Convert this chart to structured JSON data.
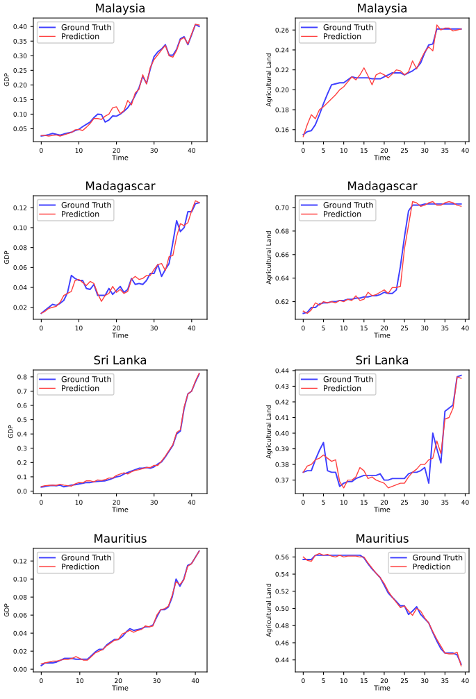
{
  "chart_data": [
    {
      "type": "line",
      "title": "Malaysia",
      "xlabel": "Time",
      "ylabel": "GDP",
      "legend": "top left",
      "grid": false,
      "x": [
        0,
        1,
        2,
        3,
        4,
        5,
        6,
        7,
        8,
        9,
        10,
        11,
        12,
        13,
        14,
        15,
        16,
        17,
        18,
        19,
        20,
        21,
        22,
        23,
        24,
        25,
        26,
        27,
        28,
        29,
        30,
        31,
        32,
        33,
        34,
        35,
        36,
        37,
        38,
        39,
        40,
        41,
        42
      ],
      "xlim": [
        -2.1,
        44.1
      ],
      "xticks": [
        0,
        10,
        20,
        30,
        40
      ],
      "ylim": [
        0.006,
        0.429
      ],
      "yticks": [
        {
          "value": 0.05,
          "label": "0.05"
        },
        {
          "value": 0.1,
          "label": "0.10"
        },
        {
          "value": 0.15,
          "label": "0.15"
        },
        {
          "value": 0.2,
          "label": "0.20"
        },
        {
          "value": 0.25,
          "label": "0.25"
        },
        {
          "value": 0.3,
          "label": "0.30"
        },
        {
          "value": 0.35,
          "label": "0.35"
        },
        {
          "value": 0.4,
          "label": "0.40"
        }
      ],
      "series": [
        {
          "name": "Ground Truth",
          "color": "#3f3fff",
          "values": [
            0.025,
            0.027,
            0.03,
            0.034,
            0.031,
            0.028,
            0.032,
            0.035,
            0.038,
            0.044,
            0.048,
            0.057,
            0.065,
            0.073,
            0.088,
            0.1,
            0.099,
            0.073,
            0.08,
            0.094,
            0.093,
            0.1,
            0.11,
            0.122,
            0.14,
            0.165,
            0.19,
            0.23,
            0.205,
            0.255,
            0.297,
            0.313,
            0.323,
            0.338,
            0.302,
            0.302,
            0.322,
            0.358,
            0.365,
            0.338,
            0.372,
            0.407,
            0.4
          ]
        },
        {
          "name": "Prediction",
          "color": "#ff3f3f",
          "values": [
            0.027,
            0.027,
            0.025,
            0.027,
            0.029,
            0.025,
            0.029,
            0.033,
            0.037,
            0.046,
            0.048,
            0.044,
            0.055,
            0.068,
            0.085,
            0.085,
            0.082,
            0.093,
            0.1,
            0.122,
            0.125,
            0.102,
            0.112,
            0.147,
            0.132,
            0.173,
            0.185,
            0.235,
            0.203,
            0.26,
            0.287,
            0.303,
            0.32,
            0.335,
            0.3,
            0.295,
            0.318,
            0.355,
            0.362,
            0.34,
            0.375,
            0.408,
            0.405
          ]
        }
      ]
    },
    {
      "type": "line",
      "title": "Malaysia",
      "xlabel": "Time",
      "ylabel": "Agricultural Land",
      "legend": "top left",
      "grid": false,
      "x": [
        0,
        1,
        2,
        3,
        4,
        5,
        6,
        7,
        8,
        9,
        10,
        11,
        12,
        13,
        14,
        15,
        16,
        17,
        18,
        19,
        20,
        21,
        22,
        23,
        24,
        25,
        26,
        27,
        28,
        29,
        30,
        31,
        32,
        33,
        34,
        35,
        36,
        37,
        38,
        39
      ],
      "xlim": [
        -1.95,
        40.95
      ],
      "xticks": [
        0,
        5,
        10,
        15,
        20,
        25,
        30,
        35,
        40
      ],
      "ylim": [
        0.148,
        0.272
      ],
      "yticks": [
        {
          "value": 0.16,
          "label": "0.16"
        },
        {
          "value": 0.18,
          "label": "0.18"
        },
        {
          "value": 0.2,
          "label": "0.20"
        },
        {
          "value": 0.22,
          "label": "0.22"
        },
        {
          "value": 0.24,
          "label": "0.24"
        },
        {
          "value": 0.26,
          "label": "0.26"
        }
      ],
      "series": [
        {
          "name": "Ground Truth",
          "color": "#3f3fff",
          "values": [
            0.155,
            0.158,
            0.159,
            0.165,
            0.175,
            0.186,
            0.196,
            0.205,
            0.206,
            0.207,
            0.207,
            0.21,
            0.213,
            0.212,
            0.212,
            0.212,
            0.212,
            0.211,
            0.211,
            0.211,
            0.213,
            0.215,
            0.217,
            0.217,
            0.217,
            0.215,
            0.217,
            0.219,
            0.222,
            0.227,
            0.237,
            0.245,
            0.246,
            0.261,
            0.261,
            0.261,
            0.261,
            0.261,
            0.261,
            0.261
          ]
        },
        {
          "name": "Prediction",
          "color": "#ff3f3f",
          "values": [
            0.153,
            0.165,
            0.175,
            0.171,
            0.18,
            0.183,
            0.187,
            0.191,
            0.195,
            0.2,
            0.203,
            0.208,
            0.213,
            0.21,
            0.215,
            0.222,
            0.214,
            0.205,
            0.215,
            0.217,
            0.215,
            0.212,
            0.216,
            0.22,
            0.219,
            0.215,
            0.218,
            0.229,
            0.221,
            0.23,
            0.238,
            0.243,
            0.239,
            0.265,
            0.26,
            0.262,
            0.262,
            0.259,
            0.26,
            0.261
          ]
        }
      ]
    },
    {
      "type": "line",
      "title": "Madagascar",
      "xlabel": "Time",
      "ylabel": "GDP",
      "legend": "top left",
      "grid": false,
      "x": [
        0,
        1,
        2,
        3,
        4,
        5,
        6,
        7,
        8,
        9,
        10,
        11,
        12,
        13,
        14,
        15,
        16,
        17,
        18,
        19,
        20,
        21,
        22,
        23,
        24,
        25,
        26,
        27,
        28,
        29,
        30,
        31,
        32,
        33,
        34,
        35,
        36,
        37,
        38,
        39,
        40,
        41,
        42
      ],
      "xlim": [
        -2.1,
        44.1
      ],
      "xticks": [
        0,
        10,
        20,
        30,
        40
      ],
      "ylim": [
        0.008,
        0.132
      ],
      "yticks": [
        {
          "value": 0.02,
          "label": "0.02"
        },
        {
          "value": 0.04,
          "label": "0.04"
        },
        {
          "value": 0.06,
          "label": "0.06"
        },
        {
          "value": 0.08,
          "label": "0.08"
        },
        {
          "value": 0.1,
          "label": "0.10"
        },
        {
          "value": 0.12,
          "label": "0.12"
        }
      ],
      "series": [
        {
          "name": "Ground Truth",
          "color": "#3f3fff",
          "values": [
            0.014,
            0.017,
            0.02,
            0.023,
            0.022,
            0.024,
            0.027,
            0.035,
            0.052,
            0.049,
            0.047,
            0.047,
            0.039,
            0.038,
            0.043,
            0.032,
            0.032,
            0.032,
            0.039,
            0.033,
            0.037,
            0.041,
            0.035,
            0.038,
            0.049,
            0.043,
            0.044,
            0.043,
            0.047,
            0.054,
            0.054,
            0.063,
            0.051,
            0.058,
            0.064,
            0.085,
            0.107,
            0.096,
            0.1,
            0.116,
            0.116,
            0.124,
            0.125
          ]
        },
        {
          "name": "Prediction",
          "color": "#ff3f3f",
          "values": [
            0.014,
            0.016,
            0.019,
            0.02,
            0.021,
            0.025,
            0.032,
            0.034,
            0.036,
            0.047,
            0.048,
            0.045,
            0.042,
            0.046,
            0.044,
            0.034,
            0.026,
            0.032,
            0.034,
            0.041,
            0.035,
            0.038,
            0.034,
            0.036,
            0.048,
            0.051,
            0.048,
            0.049,
            0.052,
            0.052,
            0.058,
            0.063,
            0.064,
            0.057,
            0.071,
            0.072,
            0.091,
            0.104,
            0.102,
            0.105,
            0.117,
            0.127,
            0.125
          ]
        }
      ]
    },
    {
      "type": "line",
      "title": "Madagascar",
      "xlabel": "Time",
      "ylabel": "Agricultural Land",
      "legend": "top left",
      "grid": false,
      "x": [
        0,
        1,
        2,
        3,
        4,
        5,
        6,
        7,
        8,
        9,
        10,
        11,
        12,
        13,
        14,
        15,
        16,
        17,
        18,
        19,
        20,
        21,
        22,
        23,
        24,
        25,
        26,
        27,
        28,
        29,
        30,
        31,
        32,
        33,
        34,
        35,
        36,
        37,
        38,
        39
      ],
      "xlim": [
        -1.95,
        40.95
      ],
      "xticks": [
        0,
        5,
        10,
        15,
        20,
        25,
        30,
        35,
        40
      ],
      "ylim": [
        0.605,
        0.71
      ],
      "yticks": [
        {
          "value": 0.62,
          "label": "0.62"
        },
        {
          "value": 0.64,
          "label": "0.64"
        },
        {
          "value": 0.66,
          "label": "0.66"
        },
        {
          "value": 0.68,
          "label": "0.68"
        },
        {
          "value": 0.7,
          "label": "0.70"
        }
      ],
      "series": [
        {
          "name": "Ground Truth",
          "color": "#3f3fff",
          "values": [
            0.61,
            0.611,
            0.615,
            0.615,
            0.618,
            0.619,
            0.619,
            0.62,
            0.62,
            0.621,
            0.621,
            0.622,
            0.622,
            0.623,
            0.623,
            0.624,
            0.624,
            0.625,
            0.625,
            0.626,
            0.628,
            0.627,
            0.627,
            0.63,
            0.65,
            0.675,
            0.697,
            0.702,
            0.702,
            0.702,
            0.703,
            0.703,
            0.703,
            0.703,
            0.703,
            0.703,
            0.703,
            0.703,
            0.703,
            0.703
          ]
        },
        {
          "name": "Prediction",
          "color": "#ff3f3f",
          "values": [
            0.612,
            0.61,
            0.613,
            0.619,
            0.617,
            0.62,
            0.619,
            0.62,
            0.619,
            0.621,
            0.62,
            0.622,
            0.621,
            0.625,
            0.621,
            0.622,
            0.628,
            0.625,
            0.626,
            0.628,
            0.63,
            0.627,
            0.632,
            0.632,
            0.633,
            0.665,
            0.685,
            0.705,
            0.704,
            0.701,
            0.702,
            0.704,
            0.705,
            0.702,
            0.702,
            0.704,
            0.705,
            0.704,
            0.702,
            0.701
          ]
        }
      ]
    },
    {
      "type": "line",
      "title": "Sri Lanka",
      "xlabel": "Time",
      "ylabel": "GDP",
      "legend": "top left",
      "grid": false,
      "x": [
        0,
        1,
        2,
        3,
        4,
        5,
        6,
        7,
        8,
        9,
        10,
        11,
        12,
        13,
        14,
        15,
        16,
        17,
        18,
        19,
        20,
        21,
        22,
        23,
        24,
        25,
        26,
        27,
        28,
        29,
        30,
        31,
        32,
        33,
        34,
        35,
        36,
        37,
        38,
        39,
        40,
        41,
        42
      ],
      "xlim": [
        -2.1,
        44.1
      ],
      "xticks": [
        0,
        10,
        20,
        30,
        40
      ],
      "ylim": [
        -0.017,
        0.848
      ],
      "yticks": [
        {
          "value": 0,
          "label": "0.0"
        },
        {
          "value": 0.1,
          "label": "0.1"
        },
        {
          "value": 0.2,
          "label": "0.2"
        },
        {
          "value": 0.3,
          "label": "0.3"
        },
        {
          "value": 0.4,
          "label": "0.4"
        },
        {
          "value": 0.5,
          "label": "0.5"
        },
        {
          "value": 0.6,
          "label": "0.6"
        },
        {
          "value": 0.7,
          "label": "0.7"
        },
        {
          "value": 0.8,
          "label": "0.8"
        }
      ],
      "series": [
        {
          "name": "Ground Truth",
          "color": "#3f3fff",
          "values": [
            0.028,
            0.032,
            0.038,
            0.04,
            0.038,
            0.042,
            0.03,
            0.035,
            0.042,
            0.045,
            0.05,
            0.055,
            0.06,
            0.06,
            0.065,
            0.068,
            0.07,
            0.072,
            0.08,
            0.09,
            0.1,
            0.105,
            0.12,
            0.13,
            0.14,
            0.15,
            0.16,
            0.16,
            0.165,
            0.16,
            0.17,
            0.19,
            0.205,
            0.24,
            0.28,
            0.32,
            0.4,
            0.42,
            0.58,
            0.68,
            0.7,
            0.765,
            0.82
          ]
        },
        {
          "name": "Prediction",
          "color": "#ff3f3f",
          "values": [
            0.032,
            0.038,
            0.04,
            0.042,
            0.04,
            0.048,
            0.042,
            0.038,
            0.035,
            0.05,
            0.06,
            0.058,
            0.072,
            0.072,
            0.065,
            0.078,
            0.075,
            0.08,
            0.092,
            0.092,
            0.11,
            0.12,
            0.128,
            0.12,
            0.135,
            0.145,
            0.15,
            0.158,
            0.165,
            0.165,
            0.18,
            0.18,
            0.21,
            0.245,
            0.285,
            0.325,
            0.41,
            0.43,
            0.59,
            0.68,
            0.7,
            0.77,
            0.825
          ]
        }
      ]
    },
    {
      "type": "line",
      "title": "Sri Lanka",
      "xlabel": "Time",
      "ylabel": "Agricultural Land",
      "legend": "top left",
      "grid": false,
      "x": [
        0,
        1,
        2,
        3,
        4,
        5,
        6,
        7,
        8,
        9,
        10,
        11,
        12,
        13,
        14,
        15,
        16,
        17,
        18,
        19,
        20,
        21,
        22,
        23,
        24,
        25,
        26,
        27,
        28,
        29,
        30,
        31,
        32,
        33,
        34,
        35,
        36,
        37,
        38,
        39
      ],
      "xlim": [
        -1.95,
        40.95
      ],
      "xticks": [
        0,
        5,
        10,
        15,
        20,
        25,
        30,
        35,
        40
      ],
      "ylim": [
        0.3614,
        0.4404
      ],
      "yticks": [
        {
          "value": 0.37,
          "label": "0.37"
        },
        {
          "value": 0.38,
          "label": "0.38"
        },
        {
          "value": 0.39,
          "label": "0.39"
        },
        {
          "value": 0.4,
          "label": "0.40"
        },
        {
          "value": 0.41,
          "label": "0.41"
        },
        {
          "value": 0.42,
          "label": "0.42"
        },
        {
          "value": 0.43,
          "label": "0.43"
        },
        {
          "value": 0.44,
          "label": "0.44"
        }
      ],
      "series": [
        {
          "name": "Ground Truth",
          "color": "#3f3fff",
          "values": [
            0.375,
            0.376,
            0.376,
            0.383,
            0.389,
            0.394,
            0.376,
            0.375,
            0.375,
            0.366,
            0.368,
            0.369,
            0.369,
            0.371,
            0.372,
            0.373,
            0.373,
            0.373,
            0.373,
            0.374,
            0.37,
            0.37,
            0.371,
            0.371,
            0.371,
            0.371,
            0.374,
            0.375,
            0.375,
            0.376,
            0.378,
            0.368,
            0.4,
            0.39,
            0.381,
            0.414,
            0.416,
            0.418,
            0.436,
            0.437
          ]
        },
        {
          "name": "Prediction",
          "color": "#ff3f3f",
          "values": [
            0.375,
            0.379,
            0.38,
            0.383,
            0.384,
            0.386,
            0.384,
            0.382,
            0.383,
            0.369,
            0.365,
            0.37,
            0.37,
            0.372,
            0.378,
            0.376,
            0.371,
            0.372,
            0.37,
            0.369,
            0.368,
            0.365,
            0.366,
            0.367,
            0.368,
            0.368,
            0.372,
            0.375,
            0.377,
            0.38,
            0.38,
            0.383,
            0.384,
            0.395,
            0.387,
            0.409,
            0.41,
            0.416,
            0.436,
            0.435
          ]
        }
      ]
    },
    {
      "type": "line",
      "title": "Mauritius",
      "xlabel": "Time",
      "ylabel": "GDP",
      "legend": "top left",
      "grid": false,
      "x": [
        0,
        1,
        2,
        3,
        4,
        5,
        6,
        7,
        8,
        9,
        10,
        11,
        12,
        13,
        14,
        15,
        16,
        17,
        18,
        19,
        20,
        21,
        22,
        23,
        24,
        25,
        26,
        27,
        28,
        29,
        30,
        31,
        32,
        33,
        34,
        35,
        36,
        37,
        38,
        39,
        40,
        41
      ],
      "xlim": [
        -2.05,
        43.05
      ],
      "xticks": [
        0,
        10,
        20,
        30,
        40
      ],
      "ylim": [
        -0.003,
        0.134
      ],
      "yticks": [
        {
          "value": 0,
          "label": "0.00"
        },
        {
          "value": 0.02,
          "label": "0.02"
        },
        {
          "value": 0.04,
          "label": "0.04"
        },
        {
          "value": 0.06,
          "label": "0.06"
        },
        {
          "value": 0.08,
          "label": "0.08"
        },
        {
          "value": 0.1,
          "label": "0.10"
        },
        {
          "value": 0.12,
          "label": "0.12"
        }
      ],
      "series": [
        {
          "name": "Ground Truth",
          "color": "#3f3fff",
          "values": [
            0.004,
            0.007,
            0.007,
            0.007,
            0.008,
            0.01,
            0.012,
            0.012,
            0.012,
            0.011,
            0.011,
            0.011,
            0.011,
            0.015,
            0.019,
            0.022,
            0.022,
            0.027,
            0.03,
            0.033,
            0.033,
            0.036,
            0.041,
            0.045,
            0.043,
            0.044,
            0.045,
            0.047,
            0.047,
            0.049,
            0.058,
            0.066,
            0.066,
            0.069,
            0.08,
            0.1,
            0.092,
            0.1,
            0.115,
            0.117,
            0.124,
            0.131
          ]
        },
        {
          "name": "Prediction",
          "color": "#ff3f3f",
          "values": [
            0.006,
            0.007,
            0.008,
            0.009,
            0.009,
            0.01,
            0.011,
            0.011,
            0.012,
            0.014,
            0.012,
            0.01,
            0.01,
            0.014,
            0.018,
            0.02,
            0.022,
            0.026,
            0.029,
            0.032,
            0.033,
            0.039,
            0.041,
            0.043,
            0.041,
            0.043,
            0.044,
            0.048,
            0.047,
            0.048,
            0.06,
            0.066,
            0.067,
            0.07,
            0.082,
            0.097,
            0.094,
            0.099,
            0.114,
            0.117,
            0.124,
            0.131
          ]
        }
      ]
    },
    {
      "type": "line",
      "title": "Mauritius",
      "xlabel": "Time",
      "ylabel": "Agricultural Land",
      "legend": "top right",
      "grid": false,
      "x": [
        0,
        1,
        2,
        3,
        4,
        5,
        6,
        7,
        8,
        9,
        10,
        11,
        12,
        13,
        14,
        15,
        16,
        17,
        18,
        19,
        20,
        21,
        22,
        23,
        24,
        25,
        26,
        27,
        28,
        29,
        30,
        31,
        32,
        33,
        34,
        35,
        36,
        37,
        38,
        39
      ],
      "xlim": [
        -1.95,
        40.95
      ],
      "xticks": [
        0,
        5,
        10,
        15,
        20,
        25,
        30,
        35,
        40
      ],
      "ylim": [
        0.426,
        0.57
      ],
      "yticks": [
        {
          "value": 0.44,
          "label": "0.44"
        },
        {
          "value": 0.46,
          "label": "0.46"
        },
        {
          "value": 0.48,
          "label": "0.48"
        },
        {
          "value": 0.5,
          "label": "0.50"
        },
        {
          "value": 0.52,
          "label": "0.52"
        },
        {
          "value": 0.54,
          "label": "0.54"
        },
        {
          "value": 0.56,
          "label": "0.56"
        }
      ],
      "series": [
        {
          "name": "Ground Truth",
          "color": "#3f3fff",
          "values": [
            0.557,
            0.557,
            0.557,
            0.562,
            0.562,
            0.562,
            0.562,
            0.562,
            0.562,
            0.562,
            0.562,
            0.562,
            0.562,
            0.562,
            0.562,
            0.559,
            0.552,
            0.546,
            0.541,
            0.536,
            0.527,
            0.518,
            0.513,
            0.508,
            0.503,
            0.503,
            0.493,
            0.497,
            0.502,
            0.493,
            0.488,
            0.483,
            0.472,
            0.462,
            0.453,
            0.448,
            0.448,
            0.448,
            0.446,
            0.435
          ]
        },
        {
          "name": "Prediction",
          "color": "#ff3f3f",
          "values": [
            0.56,
            0.556,
            0.555,
            0.562,
            0.564,
            0.562,
            0.563,
            0.561,
            0.56,
            0.562,
            0.56,
            0.561,
            0.561,
            0.561,
            0.56,
            0.56,
            0.553,
            0.547,
            0.541,
            0.536,
            0.529,
            0.52,
            0.513,
            0.507,
            0.501,
            0.503,
            0.497,
            0.492,
            0.5,
            0.497,
            0.489,
            0.483,
            0.473,
            0.464,
            0.456,
            0.448,
            0.447,
            0.447,
            0.449,
            0.433
          ]
        }
      ]
    }
  ]
}
